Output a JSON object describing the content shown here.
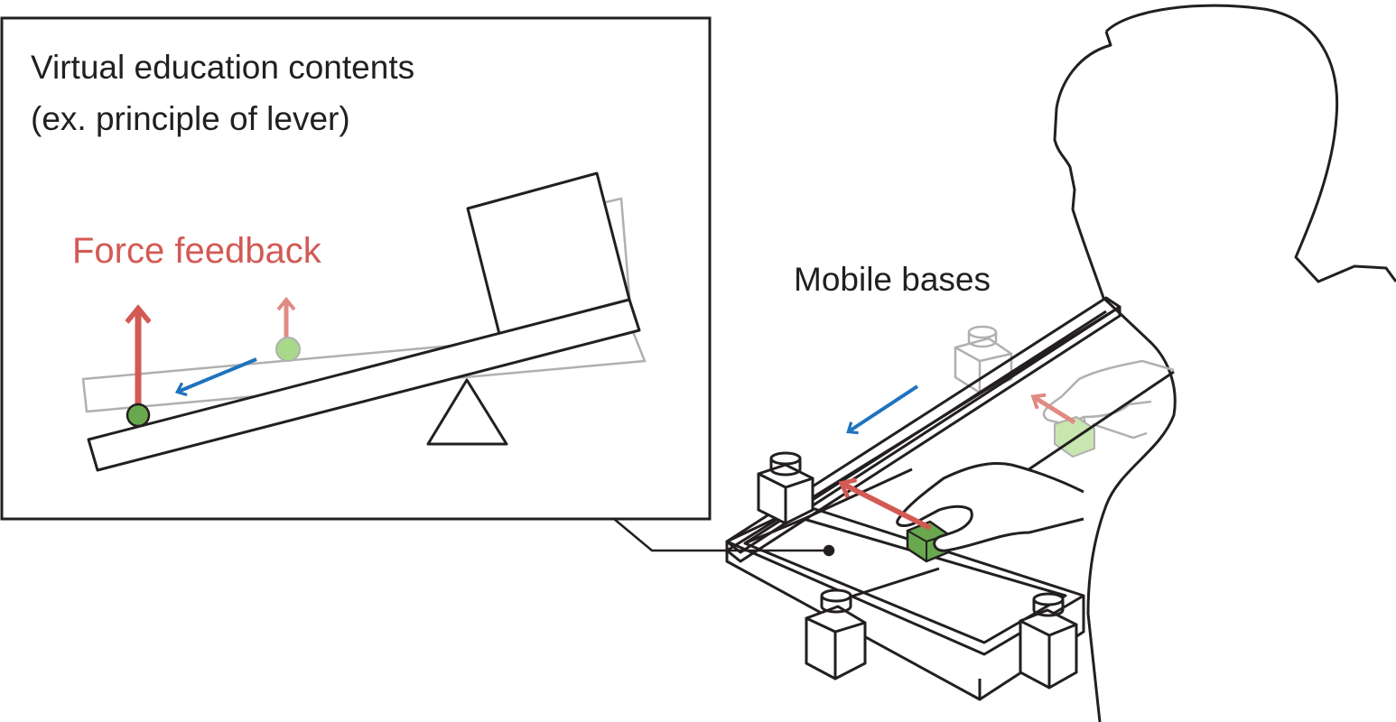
{
  "panel": {
    "title_line1": "Virtual education contents",
    "title_line2": "(ex. principle of lever)",
    "force_label": "Force feedback"
  },
  "scene": {
    "mobile_label": "Mobile bases"
  },
  "colors": {
    "stroke": "#231f20",
    "force_red": "#d35a54",
    "force_red_light": "#e08a84",
    "motion_blue": "#1e73be",
    "ball_green": "#6aa84f",
    "ball_green_light": "#a8d88a",
    "ghost_gray": "#b0b0b0"
  }
}
